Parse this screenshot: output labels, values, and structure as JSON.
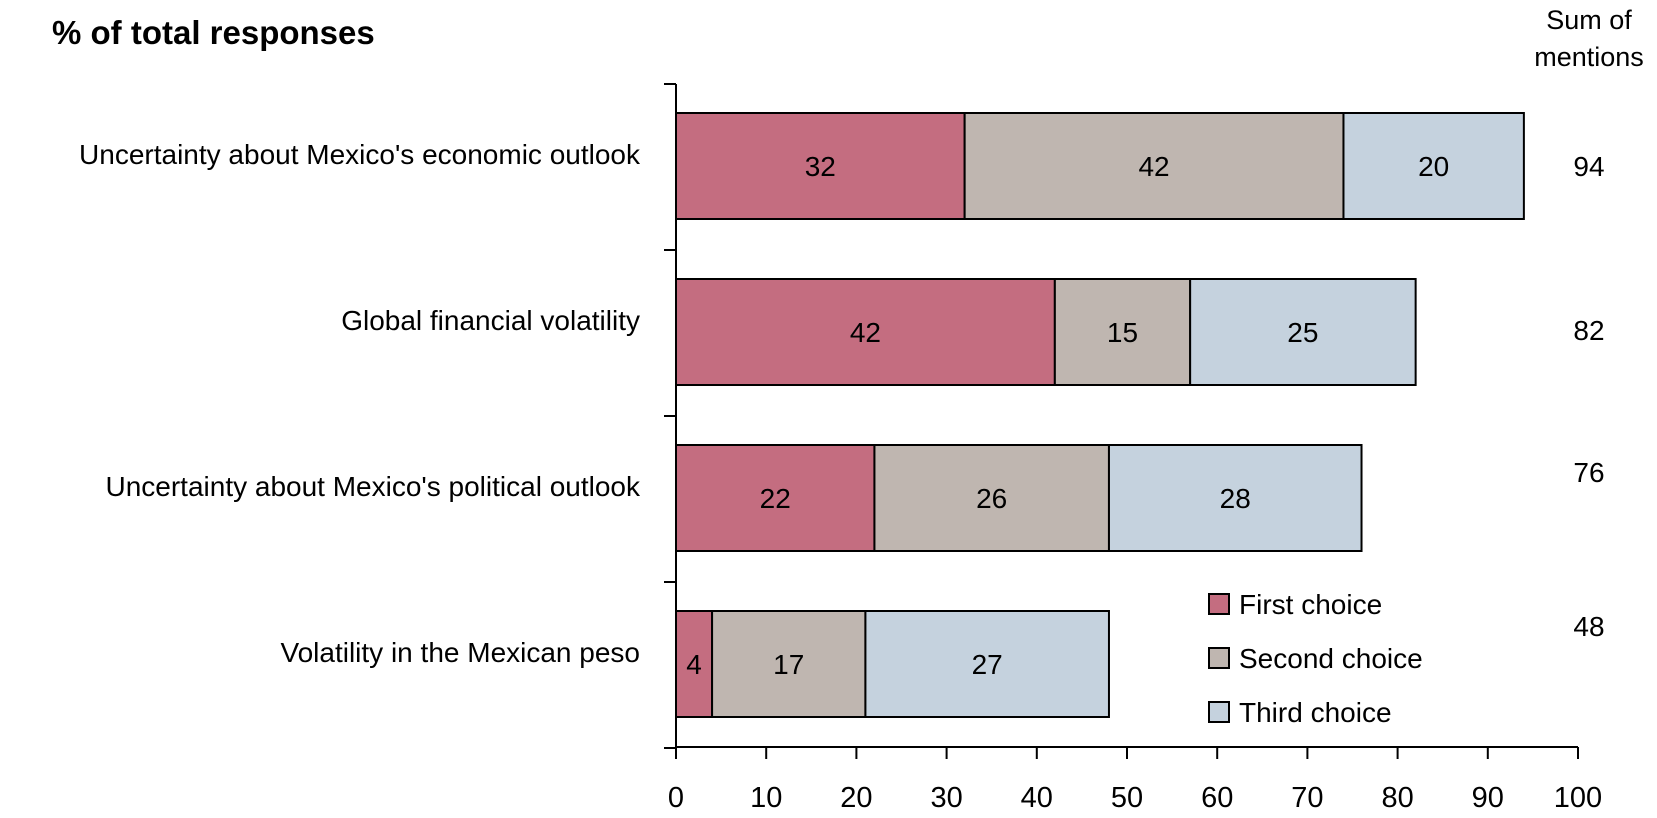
{
  "chart_data": {
    "type": "bar",
    "orientation": "horizontal",
    "stacked": true,
    "title": "% of total responses",
    "sum_header": [
      "Sum of",
      "mentions"
    ],
    "categories": [
      "Uncertainty about Mexico's economic outlook",
      "Global financial volatility",
      "Uncertainty about Mexico's political outlook",
      "Volatility in the Mexican peso"
    ],
    "series": [
      {
        "name": "First choice",
        "color": "#c46d80",
        "values": [
          32,
          42,
          22,
          4
        ]
      },
      {
        "name": "Second choice",
        "color": "#bfb6b0",
        "values": [
          42,
          15,
          26,
          17
        ]
      },
      {
        "name": "Third choice",
        "color": "#c5d2de",
        "values": [
          20,
          25,
          28,
          27
        ]
      }
    ],
    "sums": [
      94,
      82,
      76,
      48
    ],
    "xlim": [
      0,
      100
    ],
    "xticks": [
      0,
      10,
      20,
      30,
      40,
      50,
      60,
      70,
      80,
      90,
      100
    ],
    "grid": false,
    "legend_position": "bottom-right"
  }
}
